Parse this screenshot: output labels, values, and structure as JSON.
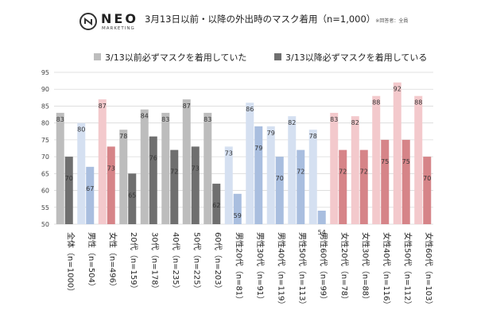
{
  "brand": {
    "name": "NEO",
    "sub": "MARKETING"
  },
  "header": {
    "title": "3月13日以前・以降の外出時のマスク着用（n=1,000）",
    "note": "※回答者：全員"
  },
  "chart_data": {
    "type": "bar",
    "title": "3月13日以前・以降の外出時のマスク着用（n=1,000）",
    "ylim": [
      50,
      95
    ],
    "yticks": [
      50,
      55,
      60,
      65,
      70,
      75,
      80,
      85,
      90,
      95
    ],
    "legend_position": "top",
    "grid": true,
    "categories": [
      "全体（n=1000）",
      "男性（n=504）",
      "女性（n=496）",
      "20代（n=159）",
      "30代（n=178）",
      "40代（n=235）",
      "50代（n=225）",
      "60代（n=203）",
      "男性20代（n=81）",
      "男性30代（n=91）",
      "男性40代（n=119）",
      "男性50代（n=113）",
      "男性60代（n=99）",
      "女性20代（n=78）",
      "女性30代（n=88）",
      "女性40代（n=116）",
      "女性50代（n=112）",
      "女性60代（n=103）"
    ],
    "groups": [
      "all",
      "male",
      "female",
      "all",
      "all",
      "all",
      "all",
      "all",
      "male",
      "male",
      "male",
      "male",
      "male",
      "female",
      "female",
      "female",
      "female",
      "female"
    ],
    "series": [
      {
        "name": "3/13以前必ずマスクを着用していた",
        "values": [
          83,
          80,
          87,
          78,
          84,
          83,
          87,
          83,
          73,
          86,
          79,
          82,
          78,
          83,
          82,
          88,
          92,
          88
        ]
      },
      {
        "name": "3/13以降必ずマスクを着用している",
        "values": [
          70,
          67,
          73,
          65,
          76,
          72,
          73,
          62,
          59,
          79,
          70,
          72,
          54,
          72,
          72,
          75,
          75,
          70
        ]
      }
    ],
    "colors": {
      "all": [
        "#bdbdbd",
        "#6f6f6f"
      ],
      "male": [
        "#d5e0f1",
        "#a9bedf"
      ],
      "female": [
        "#f3c9cc",
        "#d68488"
      ],
      "legend": [
        "#bdbdbd",
        "#6f6f6f"
      ],
      "grid": "#d9d9d9"
    }
  }
}
